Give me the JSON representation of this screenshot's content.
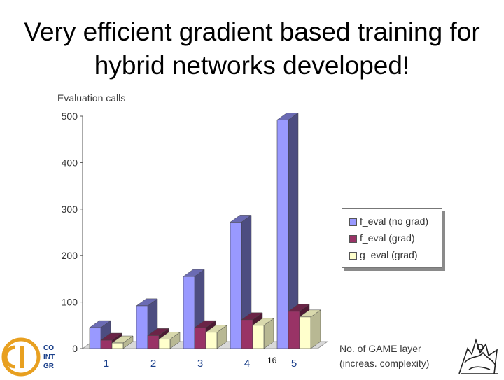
{
  "slide": {
    "title_line1": "Very efficient gradient based training for",
    "title_line2": "hybrid networks developed!",
    "page_number": "16"
  },
  "logos": {
    "left_text_lines": [
      "CO",
      "INT",
      "GR"
    ],
    "left_logo_color": "#e8a020",
    "right_logo": "lion-crest-icon"
  },
  "chart_data": {
    "type": "bar",
    "style": "3d-clustered",
    "ylabel": "Evaluation calls",
    "xlabel": [
      "No. of GAME layer",
      "(increas. complexity)"
    ],
    "ylim": [
      0,
      500
    ],
    "yticks": [
      "0",
      "100",
      "200",
      "300",
      "400",
      "500"
    ],
    "categories": [
      "1",
      "2",
      "3",
      "4",
      "5"
    ],
    "series": [
      {
        "name": "f_eval (no grad)",
        "color": "#9999ff",
        "values": [
          45,
          92,
          155,
          272,
          492
        ]
      },
      {
        "name": "f_eval (grad)",
        "color": "#993366",
        "values": [
          18,
          28,
          45,
          62,
          80
        ]
      },
      {
        "name": "g_eval (grad)",
        "color": "#ffffcc",
        "values": [
          12,
          20,
          35,
          50,
          68
        ]
      }
    ],
    "legend_position": "right",
    "grid": false
  }
}
